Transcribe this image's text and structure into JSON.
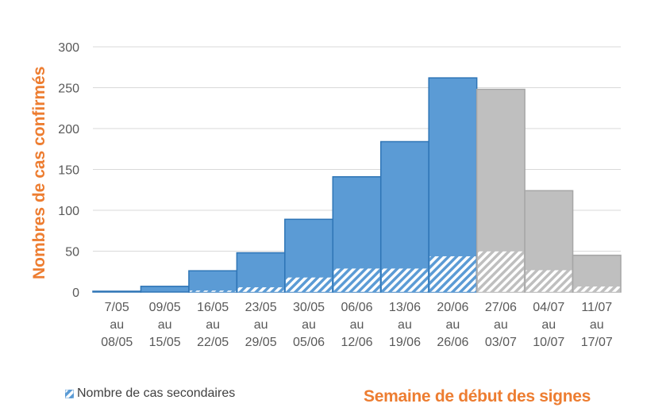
{
  "chart_data": {
    "type": "bar",
    "title": "",
    "xlabel": "Semaine de début des signes",
    "ylabel": "Nombres de cas confirmés",
    "ylim": [
      0,
      300
    ],
    "yticks": [
      0,
      50,
      100,
      150,
      200,
      250,
      300
    ],
    "grid": true,
    "categories": [
      "7/05 au 08/05",
      "09/05 au 15/05",
      "16/05 au 22/05",
      "23/05 au 29/05",
      "30/05 au 05/06",
      "06/06 au 12/06",
      "13/06 au 19/06",
      "20/06 au 26/06",
      "27/06 au 03/07",
      "04/07 au 10/07",
      "11/07 au 17/07"
    ],
    "category_lines": [
      [
        "7/05",
        "au",
        "08/05"
      ],
      [
        "09/05",
        "au",
        "15/05"
      ],
      [
        "16/05",
        "au",
        "22/05"
      ],
      [
        "23/05",
        "au",
        "29/05"
      ],
      [
        "30/05",
        "au",
        "05/06"
      ],
      [
        "06/06",
        "au",
        "12/06"
      ],
      [
        "13/06",
        "au",
        "19/06"
      ],
      [
        "20/06",
        "au",
        "26/06"
      ],
      [
        "27/06",
        "au",
        "03/07"
      ],
      [
        "04/07",
        "au",
        "10/07"
      ],
      [
        "11/07",
        "au",
        "17/07"
      ]
    ],
    "series": [
      {
        "name": "Nombre de cas confirmés",
        "values": [
          1,
          7,
          26,
          48,
          89,
          141,
          184,
          262,
          248,
          124,
          45
        ]
      },
      {
        "name": "Nombre de cas secondaires",
        "values": [
          0,
          0,
          2,
          6,
          18,
          29,
          29,
          44,
          50,
          27,
          7
        ]
      }
    ],
    "bar_colors": [
      "#5B9BD5",
      "#5B9BD5",
      "#5B9BD5",
      "#5B9BD5",
      "#5B9BD5",
      "#5B9BD5",
      "#5B9BD5",
      "#5B9BD5",
      "#BFBFBF",
      "#BFBFBF",
      "#BFBFBF"
    ],
    "legend": {
      "position": "bottom-left",
      "entries": [
        "Nombre de cas secondaires"
      ]
    }
  },
  "colors": {
    "confirmed": "#5B9BD5",
    "incomplete": "#BFBFBF",
    "axis_title": "#ED7D31",
    "grid": "#D9D9D9"
  }
}
